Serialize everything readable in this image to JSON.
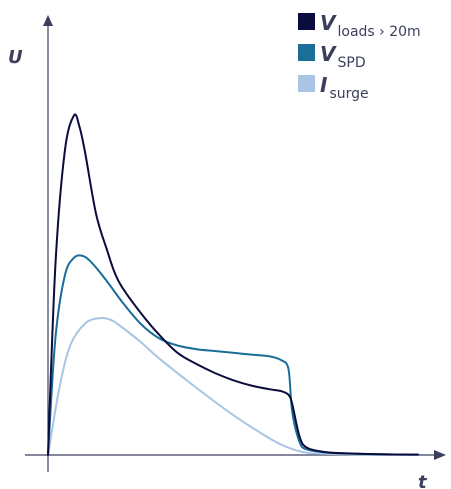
{
  "chart_data": {
    "type": "line",
    "title": "",
    "xlabel": "t",
    "ylabel": "U",
    "xlim": [
      0,
      10
    ],
    "ylim": [
      0,
      10
    ],
    "colors": {
      "v_loads": "#0b0c3e",
      "v_spd": "#1a6e98",
      "i_surge": "#aac4e4",
      "axis": "#3b3f5c"
    },
    "legend": {
      "placement": "top-right",
      "items": [
        {
          "symbol": "V",
          "subscript": "loads › 20m",
          "color": "#0b0c3e"
        },
        {
          "symbol": "V",
          "subscript": "SPD",
          "color": "#1a6e98"
        },
        {
          "symbol": "I",
          "subscript": "surge",
          "color": "#aac4e4"
        }
      ]
    },
    "series": [
      {
        "color": "#0b0c3e",
        "x": [
          0,
          0.2,
          0.45,
          0.7,
          0.85,
          1.0,
          1.3,
          1.6,
          1.8,
          2.0,
          2.5,
          3.0,
          3.5,
          4.0,
          4.5,
          5.0,
          5.5,
          6.0,
          6.3,
          6.5,
          6.6,
          6.8,
          7.0,
          7.5,
          8.0,
          9.0,
          10.0
        ],
        "y": [
          0,
          5.2,
          8.3,
          9.3,
          9.0,
          8.3,
          6.6,
          5.6,
          5.0,
          4.6,
          3.9,
          3.3,
          2.8,
          2.5,
          2.25,
          2.05,
          1.9,
          1.8,
          1.75,
          1.65,
          1.4,
          0.5,
          0.2,
          0.08,
          0.05,
          0.02,
          0.01
        ]
      },
      {
        "color": "#1a6e98",
        "x": [
          0,
          0.2,
          0.45,
          0.7,
          0.95,
          1.2,
          1.6,
          2.0,
          2.5,
          3.0,
          3.5,
          4.0,
          4.5,
          5.0,
          5.5,
          6.0,
          6.3,
          6.5,
          6.6,
          6.8,
          7.0,
          7.5,
          8.0,
          9.0,
          10.0
        ],
        "y": [
          0,
          3.2,
          4.9,
          5.4,
          5.45,
          5.25,
          4.75,
          4.2,
          3.6,
          3.2,
          3.0,
          2.9,
          2.85,
          2.8,
          2.75,
          2.7,
          2.6,
          2.35,
          1.2,
          0.35,
          0.15,
          0.07,
          0.04,
          0.02,
          0.01
        ]
      },
      {
        "color": "#aac4e4",
        "x": [
          0,
          0.3,
          0.6,
          1.0,
          1.4,
          1.7,
          2.0,
          2.5,
          3.0,
          4.0,
          5.0,
          6.0,
          6.5,
          7.0,
          7.5,
          8.0,
          9.0,
          10.0
        ],
        "y": [
          0,
          1.8,
          3.0,
          3.6,
          3.75,
          3.7,
          3.5,
          3.1,
          2.65,
          1.85,
          1.1,
          0.45,
          0.2,
          0.06,
          0.03,
          0.02,
          0.01,
          0.0
        ]
      }
    ]
  }
}
